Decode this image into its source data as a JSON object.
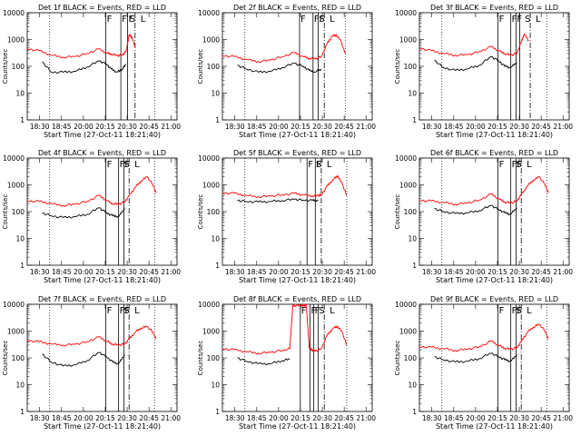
{
  "figure": {
    "x_axis_title": "Start Time (27-Oct-11 18:21:40)",
    "y_axis_title": "Counts/sec",
    "colors": {
      "events": "#000000",
      "lld": "#ff0000",
      "axes": "#000000",
      "background": "#ffffff"
    }
  },
  "chart_data": [
    {
      "type": "line",
      "title": "Det 1f BLACK = Events, RED = LLD",
      "xlabel": "Start Time (27-Oct-11 18:21:40)",
      "ylabel": "Counts/sec",
      "yscale": "log",
      "ylim": [
        1,
        10000
      ],
      "xlim": [
        0,
        100
      ],
      "xticks": [
        8.3,
        22.9,
        37.5,
        52.1,
        66.7,
        81.3,
        95.9
      ],
      "xticklabels": [
        "18:30",
        "18:45",
        "20:00",
        "20:15",
        "20:30",
        "20:45",
        "21:00"
      ],
      "yticks": [
        1,
        10,
        100,
        1000,
        10000
      ],
      "yticklabels": [
        "1",
        "10",
        "100",
        "1000",
        "10000"
      ],
      "markers": [
        "F",
        "F",
        "F",
        "S",
        "L"
      ],
      "series": [
        {
          "color": "#ff0000",
          "x": [
            0,
            8,
            16,
            24,
            32,
            40,
            48,
            53,
            56,
            60,
            63,
            66,
            68,
            70,
            72
          ],
          "y": [
            450,
            380,
            260,
            220,
            230,
            300,
            440,
            310,
            290,
            250,
            260,
            350,
            1500,
            1200,
            500
          ]
        },
        {
          "color": "#000000",
          "x": [
            10,
            16,
            24,
            32,
            40,
            48,
            53,
            56,
            60,
            63,
            66
          ],
          "y": [
            150,
            60,
            60,
            65,
            95,
            160,
            120,
            80,
            60,
            75,
            120
          ]
        }
      ],
      "vlines_solid": [
        52.5,
        62.5,
        67
      ],
      "vlines_dotted": [
        15,
        85
      ],
      "vlines_dashed": [
        72
      ]
    },
    {
      "type": "line",
      "title": "Det 2f BLACK = Events, RED = LLD",
      "xlabel": "Start Time (27-Oct-11 18:21:40)",
      "ylabel": "Counts/sec",
      "yscale": "log",
      "ylim": [
        1,
        10000
      ],
      "xlim": [
        0,
        100
      ],
      "xticks": [
        8.3,
        22.9,
        37.5,
        52.1,
        66.7,
        81.3,
        95.9
      ],
      "xticklabels": [
        "18:30",
        "18:45",
        "20:00",
        "20:15",
        "20:30",
        "20:45",
        "21:00"
      ],
      "yticks": [
        1,
        10,
        100,
        1000,
        10000
      ],
      "yticklabels": [
        "1",
        "10",
        "100",
        "1000",
        "10000"
      ],
      "markers": [
        "F",
        "F",
        "F",
        "S",
        "L"
      ],
      "series": [
        {
          "color": "#ff0000",
          "x": [
            0,
            8,
            16,
            24,
            32,
            40,
            48,
            54,
            58,
            62,
            66,
            70,
            73,
            76,
            79,
            82
          ],
          "y": [
            250,
            230,
            180,
            150,
            170,
            230,
            320,
            230,
            200,
            190,
            230,
            700,
            1300,
            1500,
            900,
            300
          ]
        },
        {
          "color": "#000000",
          "x": [
            10,
            16,
            24,
            32,
            40,
            48,
            54,
            58,
            62,
            66
          ],
          "y": [
            110,
            80,
            60,
            65,
            90,
            130,
            100,
            70,
            60,
            80
          ]
        }
      ],
      "vlines_solid": [
        51.5,
        60.5,
        64
      ],
      "vlines_dotted": [
        15,
        82
      ],
      "vlines_dashed": [
        68
      ]
    },
    {
      "type": "line",
      "title": "Det 3f BLACK = Events, RED = LLD",
      "xlabel": "Start Time (27-Oct-11 18:21:40)",
      "ylabel": "Counts/sec",
      "yscale": "log",
      "ylim": [
        1,
        10000
      ],
      "xlim": [
        0,
        100
      ],
      "xticks": [
        8.3,
        22.9,
        37.5,
        52.1,
        66.7,
        81.3,
        95.9
      ],
      "xticklabels": [
        "18:30",
        "18:45",
        "20:00",
        "20:15",
        "20:30",
        "20:45",
        "21:00"
      ],
      "yticks": [
        1,
        10,
        100,
        1000,
        10000
      ],
      "yticklabels": [
        "1",
        "10",
        "100",
        "1000",
        "10000"
      ],
      "markers": [
        "F",
        "F",
        "F",
        "S",
        "L"
      ],
      "series": [
        {
          "color": "#ff0000",
          "x": [
            0,
            8,
            16,
            24,
            32,
            40,
            48,
            53,
            57,
            61,
            65,
            68,
            70,
            73
          ],
          "y": [
            480,
            380,
            300,
            260,
            270,
            350,
            540,
            380,
            300,
            260,
            300,
            800,
            1600,
            900
          ]
        },
        {
          "color": "#000000",
          "x": [
            10,
            16,
            24,
            32,
            40,
            48,
            53,
            57,
            61,
            65
          ],
          "y": [
            170,
            90,
            70,
            80,
            110,
            230,
            160,
            100,
            90,
            140
          ]
        }
      ],
      "vlines_solid": [
        52.5,
        61,
        64.5,
        67
      ],
      "vlines_dotted": [
        15,
        85
      ],
      "vlines_dashed": [
        74
      ]
    },
    {
      "type": "line",
      "title": "Det 4f BLACK = Events, RED = LLD",
      "xlabel": "Start Time (27-Oct-11 18:21:40)",
      "ylabel": "Counts/sec",
      "yscale": "log",
      "ylim": [
        1,
        10000
      ],
      "xlim": [
        0,
        100
      ],
      "xticks": [
        8.3,
        22.9,
        37.5,
        52.1,
        66.7,
        81.3,
        95.9
      ],
      "xticklabels": [
        "18:30",
        "18:45",
        "20:00",
        "20:15",
        "20:30",
        "20:45",
        "21:00"
      ],
      "yticks": [
        1,
        10,
        100,
        1000,
        10000
      ],
      "yticklabels": [
        "1",
        "10",
        "100",
        "1000",
        "10000"
      ],
      "markers": [
        "F",
        "F",
        "F",
        "S",
        "L"
      ],
      "series": [
        {
          "color": "#ff0000",
          "x": [
            0,
            8,
            16,
            24,
            32,
            40,
            48,
            53,
            57,
            61,
            65,
            68,
            72,
            76,
            80,
            84,
            86
          ],
          "y": [
            250,
            240,
            200,
            170,
            190,
            240,
            400,
            260,
            200,
            190,
            230,
            380,
            800,
            1400,
            2000,
            1000,
            500
          ]
        },
        {
          "color": "#000000",
          "x": [
            10,
            16,
            24,
            32,
            40,
            48,
            53,
            57,
            61,
            65
          ],
          "y": [
            90,
            70,
            60,
            65,
            80,
            140,
            90,
            70,
            65,
            130
          ]
        }
      ],
      "vlines_solid": [
        52.5,
        61,
        64.5
      ],
      "vlines_dotted": [
        15,
        85
      ],
      "vlines_dashed": [
        68
      ]
    },
    {
      "type": "line",
      "title": "Det 5f BLACK = Events, RED = LLD",
      "xlabel": "Start Time (27-Oct-11 18:21:40)",
      "ylabel": "Counts/sec",
      "yscale": "log",
      "ylim": [
        1,
        10000
      ],
      "xlim": [
        0,
        100
      ],
      "xticks": [
        8.3,
        22.9,
        37.5,
        52.1,
        66.7,
        81.3,
        95.9
      ],
      "xticklabels": [
        "18:30",
        "18:45",
        "20:00",
        "20:15",
        "20:30",
        "20:45",
        "21:00"
      ],
      "yticks": [
        1,
        10,
        100,
        1000,
        10000
      ],
      "yticklabels": [
        "1",
        "10",
        "100",
        "1000",
        "10000"
      ],
      "markers": [
        "F",
        "F",
        "F",
        "S",
        "L"
      ],
      "series": [
        {
          "color": "#ff0000",
          "x": [
            0,
            8,
            16,
            24,
            32,
            40,
            48,
            54,
            60,
            64,
            66,
            70,
            74,
            77,
            80,
            83
          ],
          "y": [
            500,
            480,
            400,
            360,
            380,
            420,
            480,
            420,
            390,
            400,
            420,
            900,
            1600,
            2200,
            1100,
            400
          ]
        },
        {
          "color": "#000000",
          "x": [
            10,
            16,
            24,
            32,
            40,
            48,
            54,
            60,
            64
          ],
          "y": [
            260,
            240,
            230,
            240,
            260,
            290,
            270,
            260,
            270
          ]
        }
      ],
      "vlines_solid": [
        56.5,
        62
      ],
      "vlines_dotted": [
        15,
        83
      ],
      "vlines_dashed": [
        66
      ]
    },
    {
      "type": "line",
      "title": "Det 6f BLACK = Events, RED = LLD",
      "xlabel": "Start Time (27-Oct-11 18:21:40)",
      "ylabel": "Counts/sec",
      "yscale": "log",
      "ylim": [
        1,
        10000
      ],
      "xlim": [
        0,
        100
      ],
      "xticks": [
        8.3,
        22.9,
        37.5,
        52.1,
        66.7,
        81.3,
        95.9
      ],
      "xticklabels": [
        "18:30",
        "18:45",
        "20:00",
        "20:15",
        "20:30",
        "20:45",
        "21:00"
      ],
      "yticks": [
        1,
        10,
        100,
        1000,
        10000
      ],
      "yticklabels": [
        "1",
        "10",
        "100",
        "1000",
        "10000"
      ],
      "markers": [
        "F",
        "F",
        "F",
        "S",
        "L"
      ],
      "series": [
        {
          "color": "#ff0000",
          "x": [
            0,
            8,
            16,
            24,
            32,
            40,
            48,
            53,
            57,
            61,
            65,
            68,
            72,
            76,
            80,
            84,
            86
          ],
          "y": [
            260,
            250,
            220,
            190,
            210,
            270,
            450,
            300,
            230,
            210,
            250,
            420,
            900,
            1500,
            2000,
            1000,
            500
          ]
        },
        {
          "color": "#000000",
          "x": [
            10,
            16,
            24,
            32,
            40,
            48,
            53,
            57,
            61,
            65
          ],
          "y": [
            130,
            100,
            85,
            90,
            110,
            170,
            120,
            90,
            80,
            140
          ]
        }
      ],
      "vlines_solid": [
        52.5,
        61,
        64.5
      ],
      "vlines_dotted": [
        15,
        85
      ],
      "vlines_dashed": [
        68
      ]
    },
    {
      "type": "line",
      "title": "Det 7f BLACK = Events, RED = LLD",
      "xlabel": "Start Time (27-Oct-11 18:21:40)",
      "ylabel": "Counts/sec",
      "yscale": "log",
      "ylim": [
        1,
        10000
      ],
      "xlim": [
        0,
        100
      ],
      "xticks": [
        8.3,
        22.9,
        37.5,
        52.1,
        66.7,
        81.3,
        95.9
      ],
      "xticklabels": [
        "18:30",
        "18:45",
        "20:00",
        "20:15",
        "20:30",
        "20:45",
        "21:00"
      ],
      "yticks": [
        1,
        10,
        100,
        1000,
        10000
      ],
      "yticklabels": [
        "1",
        "10",
        "100",
        "1000",
        "10000"
      ],
      "markers": [
        "F",
        "F",
        "F",
        "S",
        "L"
      ],
      "series": [
        {
          "color": "#ff0000",
          "x": [
            0,
            8,
            16,
            24,
            32,
            40,
            48,
            53,
            57,
            61,
            65,
            68,
            72,
            76,
            80,
            84,
            86
          ],
          "y": [
            450,
            400,
            330,
            300,
            320,
            400,
            600,
            420,
            330,
            300,
            330,
            500,
            900,
            1300,
            1500,
            900,
            500
          ]
        },
        {
          "color": "#000000",
          "x": [
            10,
            16,
            24,
            32,
            40,
            48,
            53,
            57,
            61,
            65
          ],
          "y": [
            140,
            70,
            50,
            55,
            80,
            160,
            110,
            70,
            60,
            130
          ]
        }
      ],
      "vlines_solid": [
        52.5,
        61,
        64.5
      ],
      "vlines_dotted": [
        15,
        85
      ],
      "vlines_dashed": [
        68
      ]
    },
    {
      "type": "line",
      "title": "Det 8f BLACK = Events, RED = LLD",
      "xlabel": "Start Time (27-Oct-11 18:21:40)",
      "ylabel": "Counts/sec",
      "yscale": "log",
      "ylim": [
        1,
        10000
      ],
      "xlim": [
        0,
        100
      ],
      "xticks": [
        8.3,
        22.9,
        37.5,
        52.1,
        66.7,
        81.3,
        95.9
      ],
      "xticklabels": [
        "18:30",
        "18:45",
        "20:00",
        "20:15",
        "20:30",
        "20:45",
        "21:00"
      ],
      "yticks": [
        1,
        10,
        100,
        1000,
        10000
      ],
      "yticklabels": [
        "1",
        "10",
        "100",
        "1000",
        "10000"
      ],
      "markers": [
        "F",
        "F",
        "F",
        "S",
        "L"
      ],
      "series": [
        {
          "color": "#ff0000",
          "x": [
            0,
            8,
            16,
            24,
            32,
            40,
            45,
            47,
            48,
            52,
            54,
            56,
            58,
            60,
            62,
            66,
            70,
            74,
            77,
            80,
            83
          ],
          "y": [
            220,
            200,
            170,
            150,
            160,
            190,
            220,
            9000,
            9000,
            9000,
            9000,
            9000,
            230,
            200,
            180,
            220,
            700,
            1300,
            1500,
            900,
            300
          ]
        },
        {
          "color": "#000000",
          "x": [
            10,
            16,
            24,
            32,
            40,
            45
          ],
          "y": [
            100,
            75,
            60,
            60,
            80,
            90
          ]
        }
      ],
      "vlines_solid": [
        52,
        58.5,
        61,
        64
      ],
      "vlines_dotted": [
        15,
        83
      ],
      "vlines_dashed": [
        68
      ]
    },
    {
      "type": "line",
      "title": "Det 9f BLACK = Events, RED = LLD",
      "xlabel": "Start Time (27-Oct-11 18:21:40)",
      "ylabel": "Counts/sec",
      "yscale": "log",
      "ylim": [
        1,
        10000
      ],
      "xlim": [
        0,
        100
      ],
      "xticks": [
        8.3,
        22.9,
        37.5,
        52.1,
        66.7,
        81.3,
        95.9
      ],
      "xticklabels": [
        "18:30",
        "18:45",
        "20:00",
        "20:15",
        "20:30",
        "20:45",
        "21:00"
      ],
      "yticks": [
        1,
        10,
        100,
        1000,
        10000
      ],
      "yticklabels": [
        "1",
        "10",
        "100",
        "1000",
        "10000"
      ],
      "markers": [
        "F",
        "F",
        "F",
        "S",
        "L"
      ],
      "series": [
        {
          "color": "#ff0000",
          "x": [
            0,
            8,
            16,
            24,
            32,
            40,
            48,
            53,
            57,
            61,
            65,
            68,
            72,
            76,
            80,
            84,
            86
          ],
          "y": [
            260,
            250,
            220,
            190,
            210,
            260,
            420,
            290,
            230,
            210,
            240,
            400,
            900,
            1400,
            1800,
            1000,
            500
          ]
        },
        {
          "color": "#000000",
          "x": [
            10,
            16,
            24,
            32,
            40,
            48,
            53,
            57,
            61,
            65
          ],
          "y": [
            110,
            85,
            70,
            75,
            95,
            150,
            110,
            85,
            75,
            130
          ]
        }
      ],
      "vlines_solid": [
        52.5,
        61,
        64.5
      ],
      "vlines_dotted": [
        15,
        85
      ],
      "vlines_dashed": [
        68
      ]
    }
  ]
}
